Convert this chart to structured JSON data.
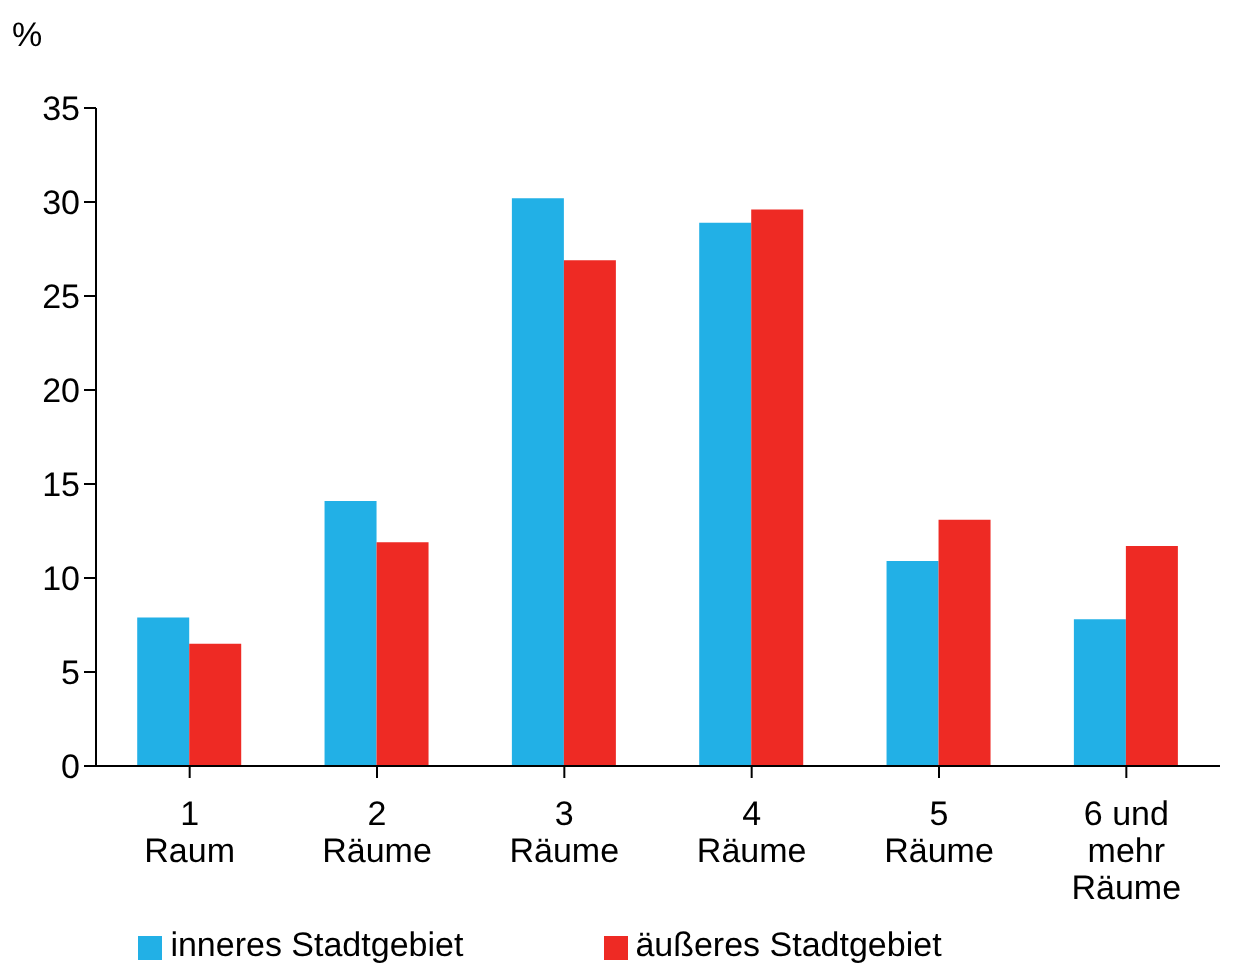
{
  "chart_data": {
    "type": "bar",
    "ylabel": "%",
    "categories": [
      "1\nRaum",
      "2\nRäume",
      "3\nRäume",
      "4\nRäume",
      "5\nRäume",
      "6 und\nmehr\nRäume"
    ],
    "series": [
      {
        "name": "inneres Stadtgebiet",
        "color": "#22b0e6",
        "values": [
          7.9,
          14.1,
          30.2,
          28.9,
          10.9,
          7.8
        ]
      },
      {
        "name": "äußeres Stadtgebiet",
        "color": "#ee2a24",
        "values": [
          6.5,
          11.9,
          26.9,
          29.6,
          13.1,
          11.7
        ]
      }
    ],
    "ylim": [
      0,
      35
    ],
    "yticks": [
      0,
      5,
      10,
      15,
      20,
      25,
      30,
      35
    ],
    "grid": false,
    "legend": "bottom"
  }
}
